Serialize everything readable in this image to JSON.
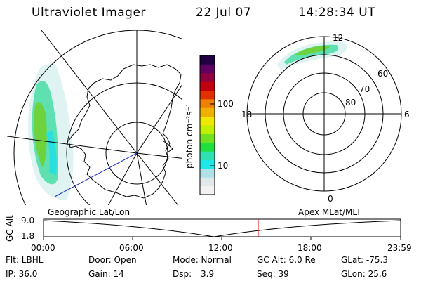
{
  "header": {
    "instrument": "Ultraviolet Imager",
    "date": "22 Jul 07",
    "time": "14:28:34 UT"
  },
  "left_panel": {
    "caption": "Geographic Lat/Lon"
  },
  "right_panel": {
    "caption": "Apex MLat/MLT",
    "mlt_labels": {
      "top": "12",
      "left": "18",
      "right": "6",
      "bottom": "0"
    },
    "mlat_labels": [
      "60",
      "70",
      "80"
    ]
  },
  "colorbar": {
    "unit_label": "photon cm⁻²s⁻¹",
    "tick_100": "100",
    "tick_10": "10",
    "colors": [
      "#f2f2f2",
      "#e0e8ec",
      "#b0e0e8",
      "#20e8e8",
      "#30e0b0",
      "#20e040",
      "#70e020",
      "#c0f000",
      "#f0e800",
      "#f0b000",
      "#f08000",
      "#e03000",
      "#c00010",
      "#900040",
      "#600060",
      "#200040"
    ]
  },
  "altitude_plot": {
    "ylabel": "GC Alt",
    "y_ticks": [
      "9.0",
      "1.8"
    ],
    "x_ticks": [
      "00:00",
      "06:00",
      "12:00",
      "18:00",
      "23:59"
    ],
    "marker_color": "#e00000"
  },
  "info": {
    "row1": {
      "filter": "Flt: LBHL",
      "door": "Door: Open",
      "mode": "Mode: Normal",
      "gc_alt": "GC Alt: 6.0 Re",
      "glat": "GLat: -75.3"
    },
    "row2": {
      "ip": "IP: 36.0",
      "gain": "Gain: 14",
      "dsp_label": "Dsp:",
      "dsp_value": "3.9",
      "seq": "Seq: 39",
      "glon": "GLon: 25.6"
    }
  }
}
